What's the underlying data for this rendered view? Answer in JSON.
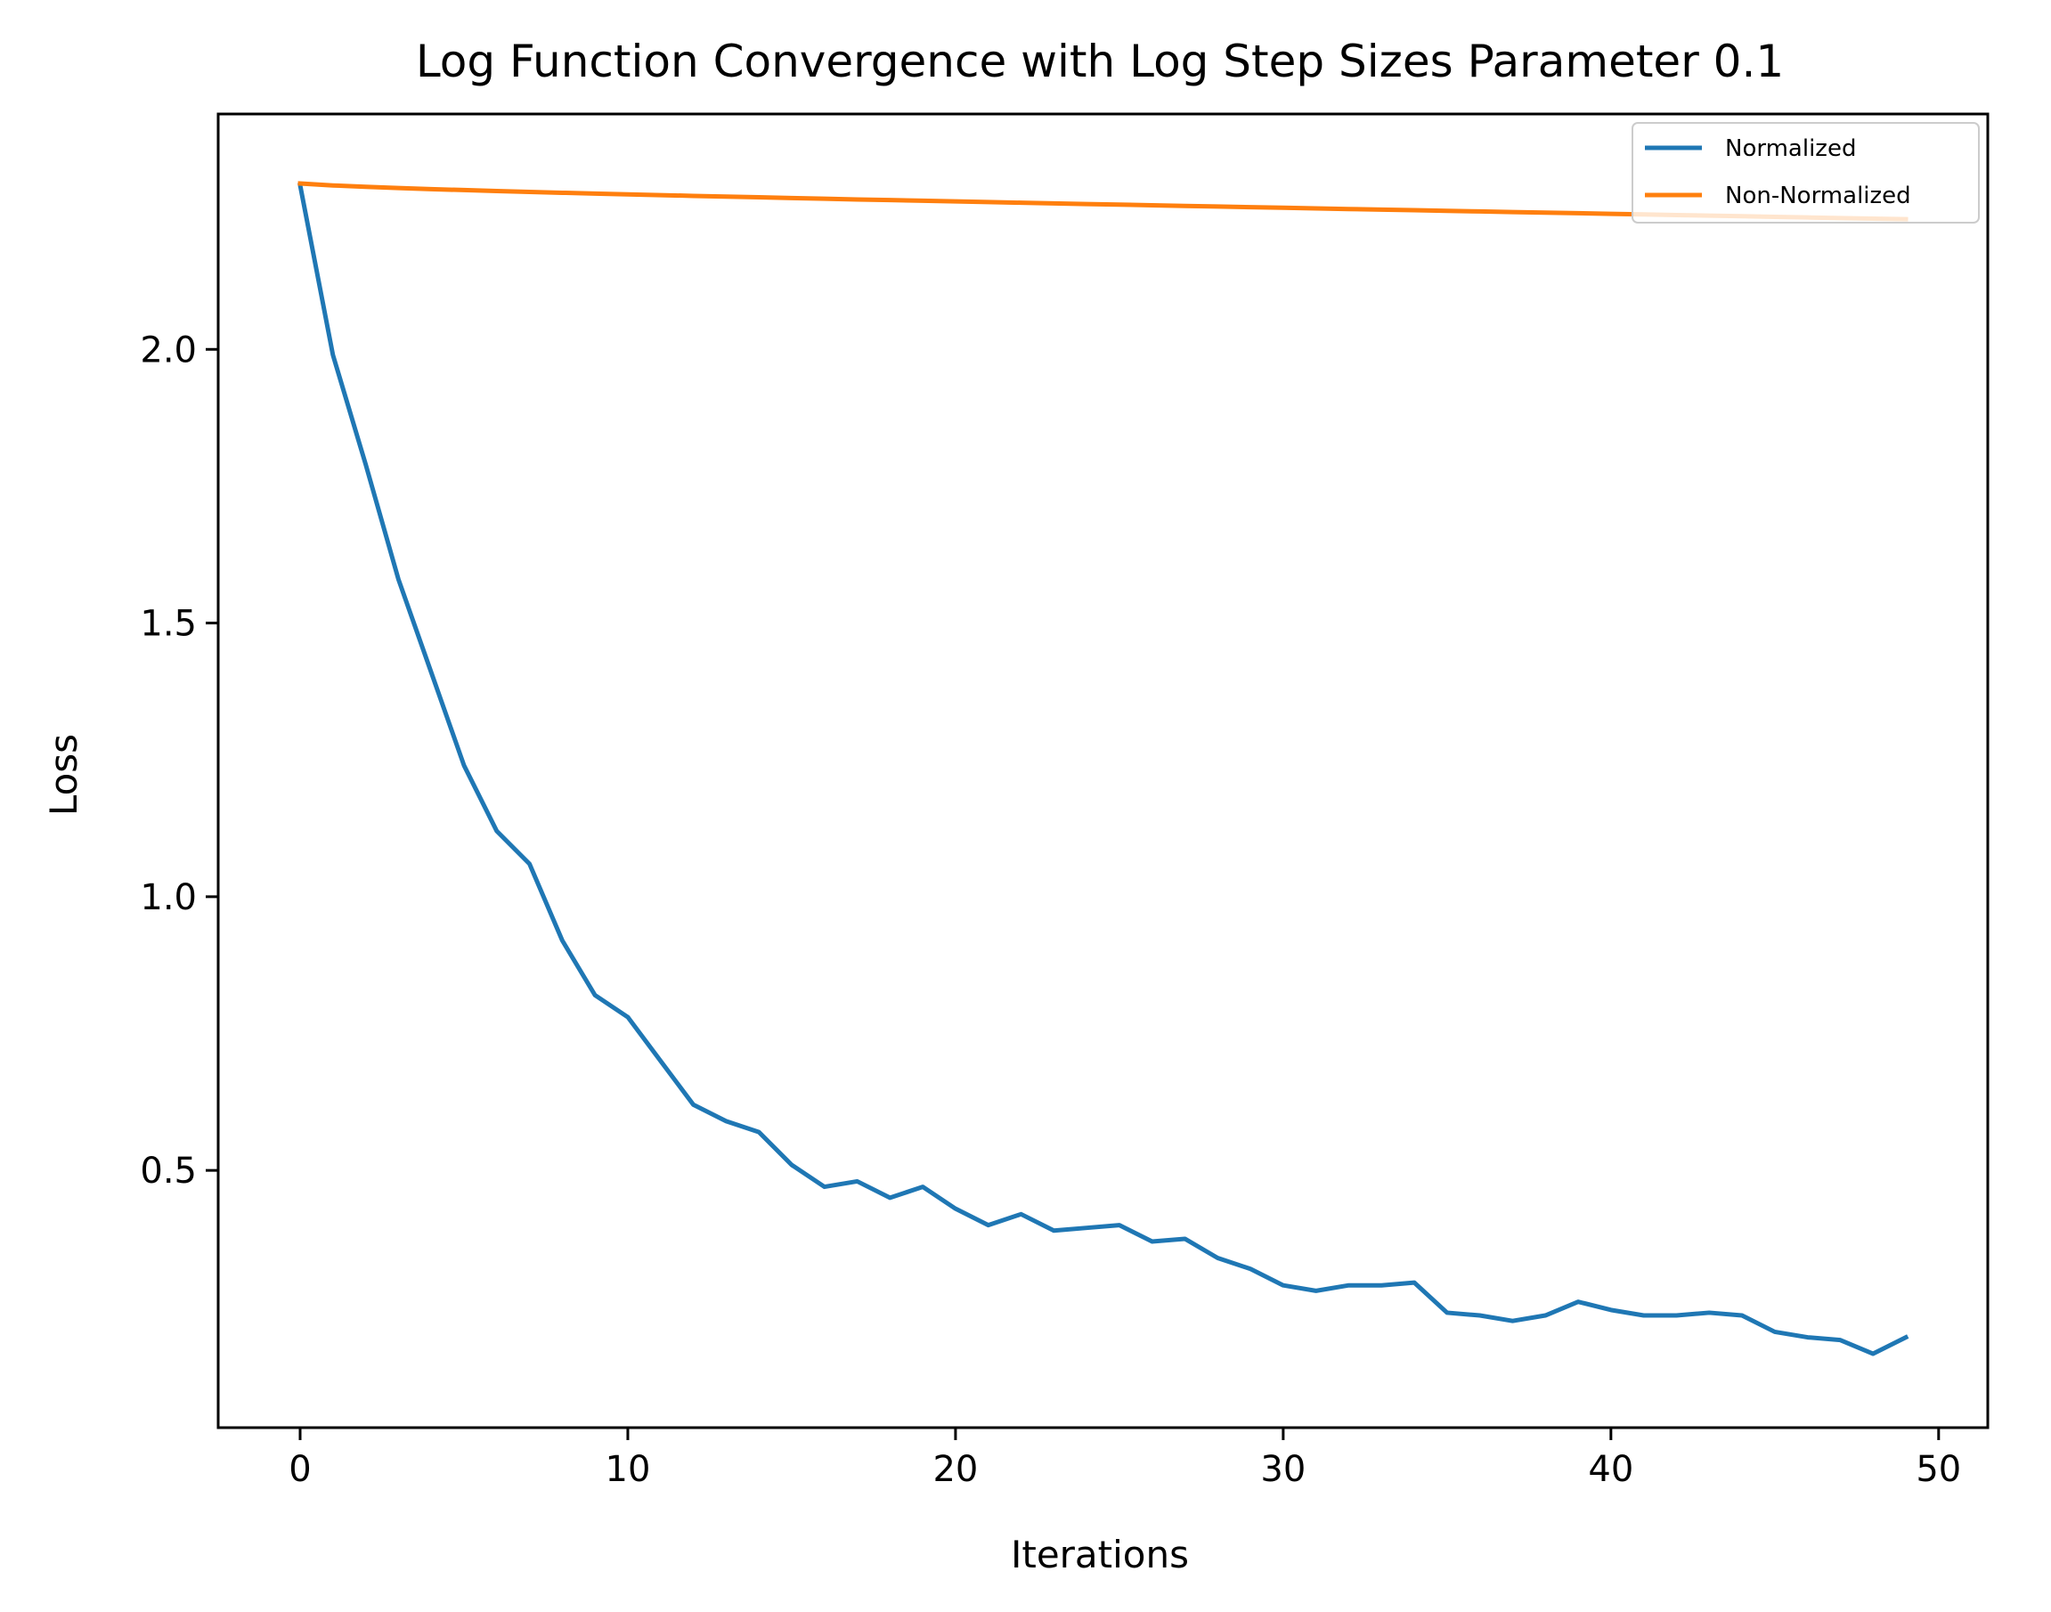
{
  "chart_data": {
    "type": "line",
    "title": "Log Function Convergence with Log Step Sizes Parameter 0.1",
    "xlabel": "Iterations",
    "ylabel": "Loss",
    "xlim": [
      -2.5,
      51.5
    ],
    "ylim": [
      0.03,
      2.43
    ],
    "xticks": [
      0,
      10,
      20,
      30,
      40,
      50
    ],
    "xtick_labels": [
      "0",
      "10",
      "20",
      "30",
      "40",
      "50"
    ],
    "yticks": [
      0.5,
      1.0,
      1.5,
      2.0
    ],
    "ytick_labels": [
      "0.5",
      "1.0",
      "1.5",
      "2.0"
    ],
    "grid": false,
    "legend": "top-right",
    "x": [
      0,
      1,
      2,
      3,
      4,
      5,
      6,
      7,
      8,
      9,
      10,
      11,
      12,
      13,
      14,
      15,
      16,
      17,
      18,
      19,
      20,
      21,
      22,
      23,
      24,
      25,
      26,
      27,
      28,
      29,
      30,
      31,
      32,
      33,
      34,
      35,
      36,
      37,
      38,
      39,
      40,
      41,
      42,
      43,
      44,
      45,
      46,
      47,
      48,
      49
    ],
    "series": [
      {
        "name": "Normalized",
        "color": "#1f77b4",
        "values": [
          2.3,
          1.99,
          1.79,
          1.58,
          1.41,
          1.24,
          1.12,
          1.06,
          0.92,
          0.82,
          0.78,
          0.7,
          0.62,
          0.59,
          0.57,
          0.51,
          0.47,
          0.48,
          0.45,
          0.47,
          0.43,
          0.4,
          0.42,
          0.39,
          0.395,
          0.4,
          0.37,
          0.375,
          0.34,
          0.32,
          0.29,
          0.28,
          0.29,
          0.29,
          0.295,
          0.24,
          0.235,
          0.225,
          0.235,
          0.26,
          0.245,
          0.235,
          0.235,
          0.24,
          0.235,
          0.205,
          0.195,
          0.19,
          0.165,
          0.195
        ]
      },
      {
        "name": "Non-Normalized",
        "color": "#ff7f0e",
        "values": [
          2.303,
          2.2995,
          2.297,
          2.2948,
          2.2928,
          2.291,
          2.2893,
          2.2877,
          2.2861,
          2.2846,
          2.2832,
          2.2818,
          2.2804,
          2.2791,
          2.2778,
          2.2765,
          2.2752,
          2.2739,
          2.2727,
          2.2715,
          2.2703,
          2.2691,
          2.2679,
          2.2667,
          2.2655,
          2.2644,
          2.2632,
          2.2621,
          2.2609,
          2.2598,
          2.2587,
          2.2575,
          2.2564,
          2.2553,
          2.2542,
          2.2531,
          2.252,
          2.2509,
          2.2498,
          2.2487,
          2.2476,
          2.2465,
          2.2454,
          2.2443,
          2.2432,
          2.2421,
          2.241,
          2.2399,
          2.2388,
          2.2378
        ]
      }
    ]
  }
}
